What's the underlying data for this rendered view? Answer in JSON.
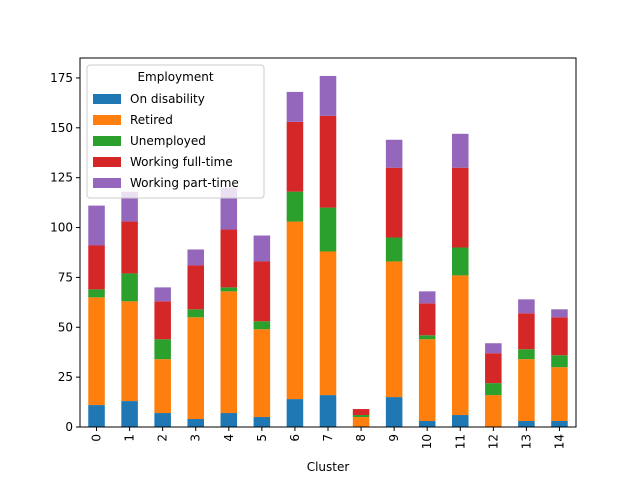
{
  "chart_data": {
    "type": "bar",
    "stacked": true,
    "title": "",
    "xlabel": "Cluster",
    "ylabel": "",
    "ylim": [
      0,
      185
    ],
    "yticks": [
      0,
      25,
      50,
      75,
      100,
      125,
      150,
      175
    ],
    "categories": [
      "0",
      "1",
      "2",
      "3",
      "4",
      "5",
      "6",
      "7",
      "8",
      "9",
      "10",
      "11",
      "12",
      "13",
      "14"
    ],
    "legend": {
      "title": "Employment",
      "placement": "upper-left"
    },
    "grid": false,
    "series": [
      {
        "name": "On disability",
        "color": "#1f77b4",
        "values": [
          11,
          13,
          7,
          4,
          7,
          5,
          14,
          16,
          0,
          15,
          3,
          6,
          0,
          3,
          3
        ]
      },
      {
        "name": "Retired",
        "color": "#ff7f0e",
        "values": [
          54,
          50,
          27,
          51,
          61,
          44,
          89,
          72,
          5,
          68,
          41,
          70,
          16,
          31,
          27
        ]
      },
      {
        "name": "Unemployed",
        "color": "#2ca02c",
        "values": [
          4,
          14,
          10,
          4,
          2,
          4,
          15,
          22,
          1,
          12,
          2,
          14,
          6,
          5,
          6
        ]
      },
      {
        "name": "Working full-time",
        "color": "#d62728",
        "values": [
          22,
          26,
          19,
          22,
          29,
          30,
          35,
          46,
          3,
          35,
          16,
          40,
          15,
          18,
          19
        ]
      },
      {
        "name": "Working part-time",
        "color": "#9467bd",
        "values": [
          20,
          15,
          7,
          8,
          21,
          13,
          15,
          20,
          0,
          14,
          6,
          17,
          5,
          7,
          4
        ]
      }
    ]
  }
}
